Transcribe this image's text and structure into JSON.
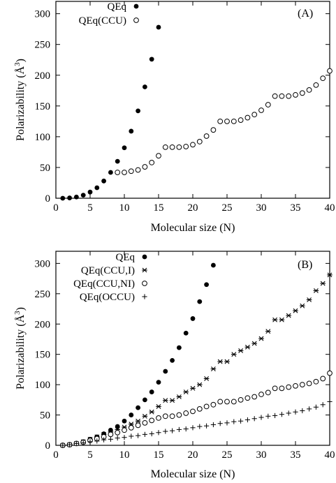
{
  "chart_data": [
    {
      "type": "scatter",
      "panel_label": "(A)",
      "xlabel": "Molecular size (N)",
      "ylabel": "Polarizability (Å³)",
      "ylabel_main": "Polarizability (Å",
      "ylabel_sup": "3",
      "ylabel_close": ")",
      "xlim": [
        0,
        40
      ],
      "ylim": [
        0,
        320
      ],
      "xticks": [
        0,
        5,
        10,
        15,
        20,
        25,
        30,
        35,
        40
      ],
      "yticks": [
        0,
        50,
        100,
        150,
        200,
        250,
        300
      ],
      "grid": false,
      "legend_position": "top-left",
      "series": [
        {
          "name": "QEq",
          "marker": "filled-circle",
          "x": [
            1,
            2,
            3,
            4,
            5,
            6,
            7,
            8,
            9,
            10,
            11,
            12,
            13,
            14,
            15
          ],
          "y": [
            0,
            0.5,
            2,
            5,
            10,
            17,
            28,
            42,
            60,
            82,
            109,
            142,
            181,
            226,
            278
          ]
        },
        {
          "name": "QEq(CCU)",
          "marker": "open-circle",
          "x": [
            9,
            10,
            11,
            12,
            13,
            14,
            15,
            16,
            17,
            18,
            19,
            20,
            21,
            22,
            23,
            24,
            25,
            26,
            27,
            28,
            29,
            30,
            31,
            32,
            33,
            34,
            35,
            36,
            37,
            38,
            39,
            40
          ],
          "y": [
            42,
            42,
            44,
            46,
            51,
            58,
            69,
            83,
            83,
            83,
            84,
            87,
            92,
            101,
            111,
            125,
            125,
            125,
            127,
            131,
            136,
            143,
            152,
            166,
            166,
            166,
            168,
            171,
            176,
            184,
            195,
            207
          ]
        }
      ]
    },
    {
      "type": "scatter",
      "panel_label": "(B)",
      "xlabel": "Molecular size (N)",
      "ylabel": "Polarizability (Å³)",
      "ylabel_main": "Polarizability (Å",
      "ylabel_sup": "3",
      "ylabel_close": ")",
      "xlim": [
        0,
        40
      ],
      "ylim": [
        0,
        320
      ],
      "xticks": [
        0,
        5,
        10,
        15,
        20,
        25,
        30,
        35,
        40
      ],
      "yticks": [
        0,
        50,
        100,
        150,
        200,
        250,
        300
      ],
      "grid": false,
      "legend_position": "top-left",
      "series": [
        {
          "name": "QEq",
          "marker": "filled-circle",
          "x": [
            1,
            2,
            3,
            4,
            5,
            6,
            7,
            8,
            9,
            10,
            11,
            12,
            13,
            14,
            15,
            16,
            17,
            18,
            19,
            20,
            21,
            22,
            23
          ],
          "y": [
            0,
            1,
            3,
            6,
            10,
            14,
            19,
            25,
            31,
            40,
            50,
            62,
            75,
            88,
            104,
            122,
            140,
            161,
            185,
            209,
            237,
            265,
            297
          ]
        },
        {
          "name": "QEq(CCU,I)",
          "marker": "asterisk",
          "x": [
            1,
            2,
            3,
            4,
            5,
            6,
            7,
            8,
            9,
            10,
            11,
            12,
            13,
            14,
            15,
            16,
            17,
            18,
            19,
            20,
            21,
            22,
            23,
            24,
            25,
            26,
            27,
            28,
            29,
            30,
            31,
            32,
            33,
            34,
            35,
            36,
            37,
            38,
            39,
            40
          ],
          "y": [
            0,
            1,
            3,
            6,
            10,
            14,
            18,
            22,
            26,
            30,
            35,
            40,
            48,
            55,
            64,
            74,
            74,
            80,
            88,
            94,
            100,
            110,
            126,
            138,
            138,
            150,
            156,
            162,
            168,
            176,
            188,
            207,
            207,
            214,
            222,
            230,
            240,
            255,
            267,
            281
          ]
        },
        {
          "name": "QEq(CCU,NI)",
          "marker": "open-circle",
          "x": [
            1,
            2,
            3,
            4,
            5,
            6,
            7,
            8,
            9,
            10,
            11,
            12,
            13,
            14,
            15,
            16,
            17,
            18,
            19,
            20,
            21,
            22,
            23,
            24,
            25,
            26,
            27,
            28,
            29,
            30,
            31,
            32,
            33,
            34,
            35,
            36,
            37,
            38,
            39,
            40
          ],
          "y": [
            0,
            1,
            3,
            5,
            8,
            11,
            14,
            18,
            21,
            25,
            29,
            33,
            37,
            41,
            45,
            48,
            48,
            50,
            53,
            56,
            60,
            64,
            67,
            72,
            72,
            72,
            75,
            78,
            80,
            84,
            87,
            94,
            94,
            96,
            98,
            100,
            102,
            105,
            110,
            119
          ]
        },
        {
          "name": "QEq(OCCU)",
          "marker": "plus",
          "x": [
            1,
            2,
            3,
            4,
            5,
            6,
            7,
            8,
            9,
            10,
            11,
            12,
            13,
            14,
            15,
            16,
            17,
            18,
            19,
            20,
            21,
            22,
            23,
            24,
            25,
            26,
            27,
            28,
            29,
            30,
            31,
            32,
            33,
            34,
            35,
            36,
            37,
            38,
            39,
            40
          ],
          "y": [
            0,
            1,
            3,
            4,
            6,
            7,
            9,
            10,
            12,
            13,
            15,
            16,
            18,
            19,
            21,
            23,
            24,
            26,
            27,
            29,
            31,
            32,
            34,
            36,
            37,
            39,
            40,
            42,
            44,
            46,
            48,
            49,
            51,
            53,
            55,
            57,
            60,
            63,
            67,
            72
          ]
        }
      ]
    }
  ]
}
